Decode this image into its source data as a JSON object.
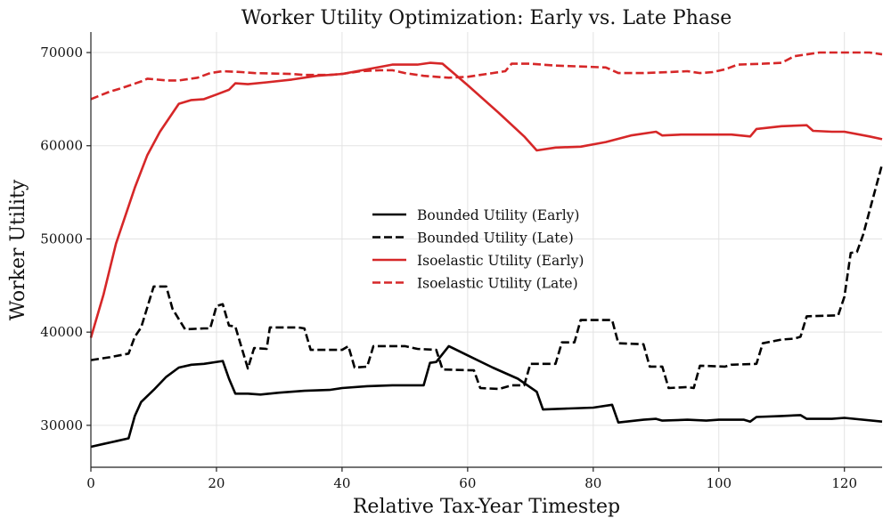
{
  "chart_data": {
    "type": "line",
    "title": "Worker Utility Optimization: Early vs. Late Phase",
    "xlabel": "Relative Tax-Year Timestep",
    "ylabel": "Worker Utility",
    "xlim": [
      0,
      126
    ],
    "ylim": [
      25500,
      72200
    ],
    "xticks": [
      0,
      20,
      40,
      60,
      80,
      100,
      120
    ],
    "yticks": [
      30000,
      40000,
      50000,
      60000,
      70000
    ],
    "grid": true,
    "legend_position": "center",
    "series": [
      {
        "name": "Bounded Utility (Early)",
        "color": "#000000",
        "dash": "solid",
        "points": [
          [
            0,
            27700
          ],
          [
            2,
            28000
          ],
          [
            4,
            28300
          ],
          [
            6,
            28600
          ],
          [
            7,
            31000
          ],
          [
            8,
            32500
          ],
          [
            10,
            33800
          ],
          [
            12,
            35200
          ],
          [
            14,
            36200
          ],
          [
            16,
            36500
          ],
          [
            18,
            36600
          ],
          [
            21,
            36900
          ],
          [
            22,
            35000
          ],
          [
            23,
            33400
          ],
          [
            25,
            33400
          ],
          [
            27,
            33300
          ],
          [
            30,
            33500
          ],
          [
            34,
            33700
          ],
          [
            38,
            33800
          ],
          [
            40,
            34000
          ],
          [
            44,
            34200
          ],
          [
            48,
            34300
          ],
          [
            53,
            34300
          ],
          [
            54,
            36700
          ],
          [
            55,
            36800
          ],
          [
            57,
            38500
          ],
          [
            60,
            37500
          ],
          [
            64,
            36200
          ],
          [
            68,
            35000
          ],
          [
            71,
            33600
          ],
          [
            72,
            31700
          ],
          [
            76,
            31800
          ],
          [
            80,
            31900
          ],
          [
            83,
            32200
          ],
          [
            84,
            30300
          ],
          [
            88,
            30600
          ],
          [
            90,
            30700
          ],
          [
            91,
            30500
          ],
          [
            95,
            30600
          ],
          [
            98,
            30500
          ],
          [
            100,
            30600
          ],
          [
            104,
            30600
          ],
          [
            105,
            30400
          ],
          [
            106,
            30900
          ],
          [
            110,
            31000
          ],
          [
            113,
            31100
          ],
          [
            114,
            30700
          ],
          [
            118,
            30700
          ],
          [
            120,
            30800
          ],
          [
            126,
            30400
          ]
        ]
      },
      {
        "name": "Bounded Utility (Late)",
        "color": "#000000",
        "dash": "dashed",
        "points": [
          [
            0,
            37000
          ],
          [
            3,
            37300
          ],
          [
            6,
            37700
          ],
          [
            7,
            39500
          ],
          [
            8,
            40500
          ],
          [
            10,
            44900
          ],
          [
            12,
            44900
          ],
          [
            13,
            42500
          ],
          [
            15,
            40300
          ],
          [
            18,
            40400
          ],
          [
            19,
            40400
          ],
          [
            20,
            42800
          ],
          [
            21,
            43000
          ],
          [
            22,
            40700
          ],
          [
            23,
            40600
          ],
          [
            25,
            36100
          ],
          [
            26,
            38300
          ],
          [
            28,
            38200
          ],
          [
            28.5,
            40500
          ],
          [
            33,
            40500
          ],
          [
            34,
            40400
          ],
          [
            35,
            38100
          ],
          [
            40,
            38100
          ],
          [
            41,
            38500
          ],
          [
            42,
            36200
          ],
          [
            44,
            36300
          ],
          [
            45,
            38500
          ],
          [
            50,
            38500
          ],
          [
            52,
            38200
          ],
          [
            55,
            38100
          ],
          [
            56,
            36000
          ],
          [
            61,
            35900
          ],
          [
            62,
            34000
          ],
          [
            65,
            33900
          ],
          [
            67,
            34300
          ],
          [
            68,
            34300
          ],
          [
            69,
            34300
          ],
          [
            70,
            36600
          ],
          [
            74,
            36600
          ],
          [
            75,
            38900
          ],
          [
            77,
            38900
          ],
          [
            78,
            41300
          ],
          [
            83,
            41300
          ],
          [
            84,
            38800
          ],
          [
            88,
            38700
          ],
          [
            89,
            36300
          ],
          [
            91,
            36300
          ],
          [
            92,
            34000
          ],
          [
            95,
            34100
          ],
          [
            96,
            34000
          ],
          [
            97,
            36400
          ],
          [
            101,
            36300
          ],
          [
            102,
            36500
          ],
          [
            106,
            36600
          ],
          [
            107,
            38800
          ],
          [
            110,
            39200
          ],
          [
            112,
            39300
          ],
          [
            113,
            39500
          ],
          [
            114,
            41700
          ],
          [
            119,
            41800
          ],
          [
            120,
            43800
          ],
          [
            121,
            48500
          ],
          [
            122,
            48600
          ],
          [
            123,
            50500
          ],
          [
            124,
            53000
          ],
          [
            126,
            58000
          ]
        ]
      },
      {
        "name": "Isoelastic Utility (Early)",
        "color": "#d62728",
        "dash": "solid",
        "points": [
          [
            0,
            39400
          ],
          [
            2,
            44000
          ],
          [
            4,
            49500
          ],
          [
            7,
            55500
          ],
          [
            9,
            59000
          ],
          [
            11,
            61500
          ],
          [
            13,
            63500
          ],
          [
            14,
            64500
          ],
          [
            16,
            64900
          ],
          [
            18,
            65000
          ],
          [
            20,
            65500
          ],
          [
            22,
            66000
          ],
          [
            23,
            66700
          ],
          [
            25,
            66600
          ],
          [
            28,
            66800
          ],
          [
            32,
            67100
          ],
          [
            36,
            67500
          ],
          [
            40,
            67700
          ],
          [
            44,
            68200
          ],
          [
            48,
            68700
          ],
          [
            52,
            68700
          ],
          [
            54,
            68900
          ],
          [
            56,
            68800
          ],
          [
            60,
            66500
          ],
          [
            65,
            63500
          ],
          [
            69,
            61000
          ],
          [
            71,
            59500
          ],
          [
            74,
            59800
          ],
          [
            78,
            59900
          ],
          [
            82,
            60400
          ],
          [
            86,
            61100
          ],
          [
            90,
            61500
          ],
          [
            91,
            61100
          ],
          [
            94,
            61200
          ],
          [
            98,
            61200
          ],
          [
            102,
            61200
          ],
          [
            105,
            61000
          ],
          [
            106,
            61800
          ],
          [
            110,
            62100
          ],
          [
            114,
            62200
          ],
          [
            115,
            61600
          ],
          [
            118,
            61500
          ],
          [
            120,
            61500
          ],
          [
            124,
            61000
          ],
          [
            126,
            60700
          ]
        ]
      },
      {
        "name": "Isoelastic Utility (Late)",
        "color": "#d62728",
        "dash": "dashed",
        "points": [
          [
            0,
            65000
          ],
          [
            3,
            65800
          ],
          [
            5,
            66200
          ],
          [
            8,
            66900
          ],
          [
            9,
            67200
          ],
          [
            12,
            67000
          ],
          [
            14,
            67000
          ],
          [
            17,
            67300
          ],
          [
            19,
            67800
          ],
          [
            21,
            68000
          ],
          [
            24,
            67900
          ],
          [
            26,
            67800
          ],
          [
            32,
            67700
          ],
          [
            34,
            67600
          ],
          [
            38,
            67600
          ],
          [
            40,
            67700
          ],
          [
            43,
            68000
          ],
          [
            46,
            68100
          ],
          [
            48,
            68100
          ],
          [
            50,
            67800
          ],
          [
            53,
            67500
          ],
          [
            55,
            67400
          ],
          [
            57,
            67300
          ],
          [
            60,
            67400
          ],
          [
            64,
            67800
          ],
          [
            66,
            68000
          ],
          [
            67,
            68800
          ],
          [
            70,
            68800
          ],
          [
            74,
            68600
          ],
          [
            78,
            68500
          ],
          [
            82,
            68400
          ],
          [
            84,
            67800
          ],
          [
            88,
            67800
          ],
          [
            92,
            67900
          ],
          [
            95,
            68000
          ],
          [
            97,
            67800
          ],
          [
            99,
            67900
          ],
          [
            101,
            68200
          ],
          [
            103,
            68700
          ],
          [
            107,
            68800
          ],
          [
            110,
            68900
          ],
          [
            112,
            69600
          ],
          [
            116,
            70000
          ],
          [
            118,
            70000
          ],
          [
            120,
            70000
          ],
          [
            124,
            70000
          ],
          [
            126,
            69800
          ]
        ]
      }
    ]
  }
}
